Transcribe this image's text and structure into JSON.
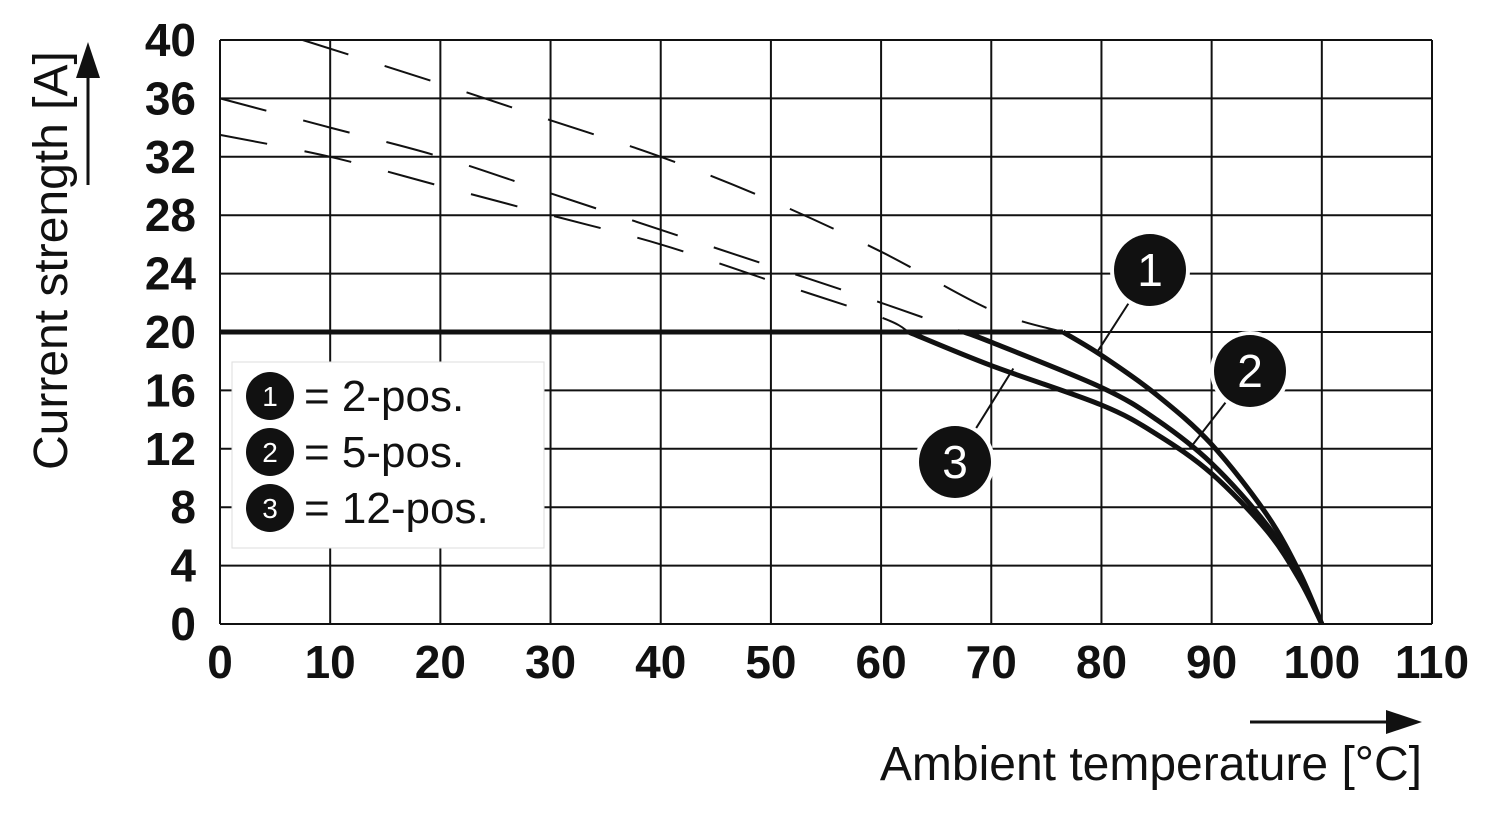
{
  "chart_data": {
    "type": "line",
    "xlabel": "Ambient temperature [°C]",
    "ylabel": "Current strength [A]",
    "xlim": [
      0,
      110
    ],
    "ylim": [
      0,
      40
    ],
    "x_ticks": [
      0,
      10,
      20,
      30,
      40,
      50,
      60,
      70,
      80,
      90,
      100,
      110
    ],
    "y_ticks": [
      0,
      4,
      8,
      12,
      16,
      20,
      24,
      28,
      32,
      36,
      40
    ],
    "grid": true,
    "legend_position": "left",
    "limit_line": {
      "y": 20
    },
    "series": [
      {
        "name": "1",
        "legend_label": "= 2-pos.",
        "dashed_part": [
          [
            7.5,
            40
          ],
          [
            20,
            37
          ],
          [
            30,
            34.5
          ],
          [
            40,
            32
          ],
          [
            50,
            29
          ],
          [
            60,
            25.5
          ],
          [
            70,
            21.5
          ],
          [
            76.5,
            20
          ]
        ],
        "solid_part": [
          [
            76.5,
            20
          ],
          [
            80,
            18.4
          ],
          [
            85,
            15.7
          ],
          [
            90,
            12.3
          ],
          [
            95,
            7.5
          ],
          [
            98,
            3.5
          ],
          [
            100,
            0
          ]
        ],
        "callout_anchor": [
          79.5,
          18.5
        ]
      },
      {
        "name": "2",
        "legend_label": "= 5-pos.",
        "dashed_part": [
          [
            0,
            36
          ],
          [
            10,
            34
          ],
          [
            20,
            32
          ],
          [
            30,
            29.5
          ],
          [
            40,
            27
          ],
          [
            50,
            24.5
          ],
          [
            60,
            22
          ],
          [
            67.5,
            20
          ]
        ],
        "solid_part": [
          [
            67.5,
            20
          ],
          [
            70,
            19.3
          ],
          [
            80,
            16.2
          ],
          [
            85,
            14
          ],
          [
            90,
            11
          ],
          [
            95,
            6.8
          ],
          [
            98,
            3.2
          ],
          [
            100,
            0
          ]
        ],
        "callout_anchor": [
          88,
          12
        ]
      },
      {
        "name": "3",
        "legend_label": "= 12-pos.",
        "dashed_part": [
          [
            0,
            33.5
          ],
          [
            10,
            32
          ],
          [
            20,
            30
          ],
          [
            30,
            28
          ],
          [
            40,
            26
          ],
          [
            50,
            23.5
          ],
          [
            60,
            21
          ],
          [
            62.5,
            20
          ]
        ],
        "solid_part": [
          [
            62.5,
            20
          ],
          [
            70,
            17.7
          ],
          [
            80,
            15
          ],
          [
            85,
            13
          ],
          [
            90,
            10.3
          ],
          [
            95,
            6.4
          ],
          [
            98,
            3
          ],
          [
            100,
            0
          ]
        ],
        "callout_anchor": [
          72,
          17.5
        ]
      }
    ]
  }
}
